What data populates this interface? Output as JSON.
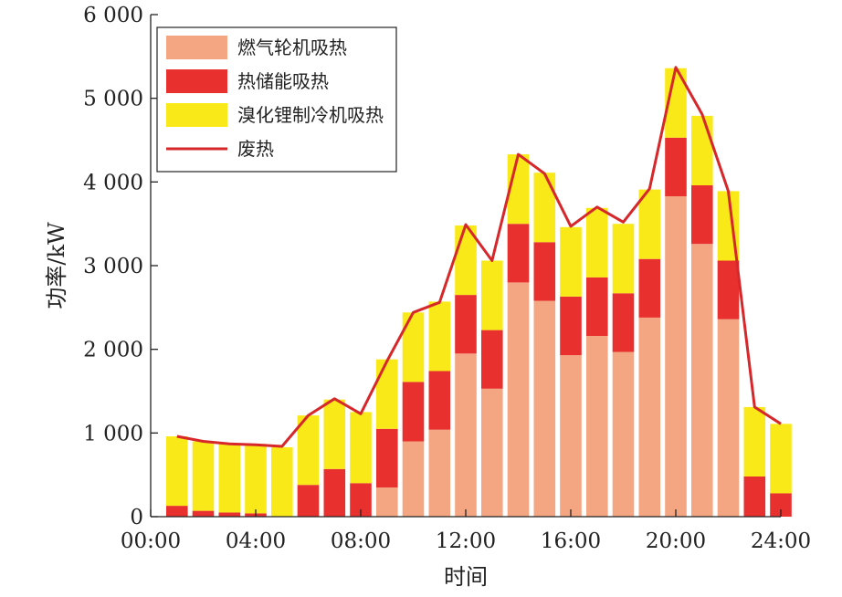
{
  "chart_data": {
    "type": "bar",
    "stacked": true,
    "x": [
      "01:00",
      "02:00",
      "03:00",
      "04:00",
      "05:00",
      "06:00",
      "07:00",
      "08:00",
      "09:00",
      "10:00",
      "11:00",
      "12:00",
      "13:00",
      "14:00",
      "15:00",
      "16:00",
      "17:00",
      "18:00",
      "19:00",
      "20:00",
      "21:00",
      "22:00",
      "23:00",
      "24:00"
    ],
    "xlabel": "时间",
    "ylabel": "功率/kW",
    "xtick_labels": [
      "00:00",
      "04:00",
      "08:00",
      "12:00",
      "16:00",
      "20:00",
      "24:00"
    ],
    "ytick_values": [
      0,
      1000,
      2000,
      3000,
      4000,
      5000,
      6000
    ],
    "ytick_labels": [
      "0",
      "1 000",
      "2 000",
      "3 000",
      "4 000",
      "5 000",
      "6 000"
    ],
    "xlim": [
      0,
      24
    ],
    "ylim": [
      0,
      6000
    ],
    "legend_position": "top-left",
    "series": [
      {
        "name": "燃气轮机吸热",
        "kind": "bar",
        "color": "#F4A582",
        "values": [
          0,
          0,
          0,
          0,
          0,
          0,
          0,
          0,
          350,
          900,
          1040,
          1950,
          1530,
          2800,
          2580,
          1930,
          2160,
          1970,
          2380,
          3830,
          3260,
          2360,
          0,
          0
        ]
      },
      {
        "name": "热储能吸热",
        "kind": "bar",
        "color": "#E8302F",
        "values": [
          130,
          70,
          50,
          40,
          0,
          380,
          570,
          400,
          700,
          710,
          700,
          700,
          700,
          700,
          700,
          700,
          700,
          700,
          700,
          700,
          700,
          700,
          480,
          280
        ]
      },
      {
        "name": "溴化锂制冷机吸热",
        "kind": "bar",
        "color": "#F9E919",
        "values": [
          830,
          830,
          830,
          830,
          830,
          830,
          830,
          850,
          830,
          830,
          830,
          830,
          830,
          830,
          830,
          830,
          830,
          830,
          830,
          830,
          830,
          830,
          830,
          830
        ]
      },
      {
        "name": "废热",
        "kind": "line",
        "color": "#D6272B",
        "values": [
          960,
          900,
          870,
          860,
          840,
          1210,
          1410,
          1230,
          1860,
          2440,
          2560,
          3490,
          3060,
          4330,
          4100,
          3470,
          3700,
          3520,
          3920,
          5370,
          4810,
          3890,
          1310,
          1110
        ]
      }
    ]
  }
}
